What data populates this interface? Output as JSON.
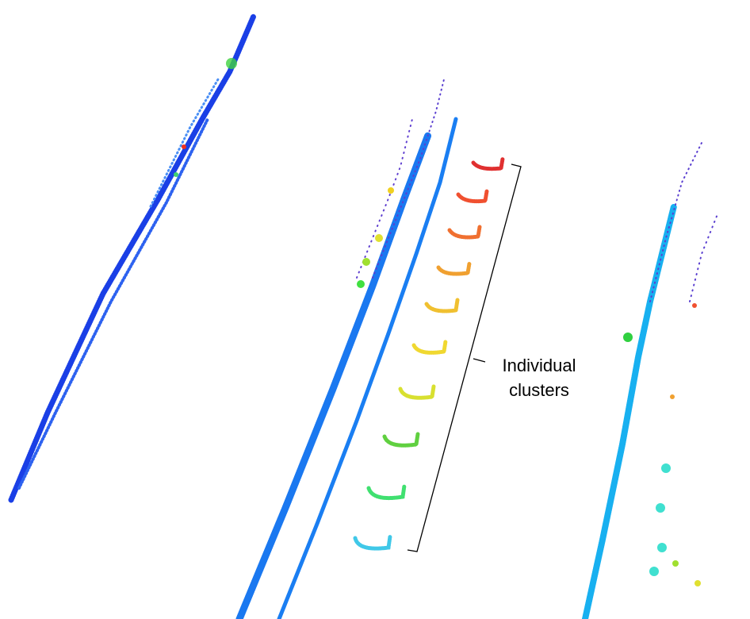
{
  "annotation": {
    "lines": [
      "Individual",
      "clusters"
    ]
  }
}
